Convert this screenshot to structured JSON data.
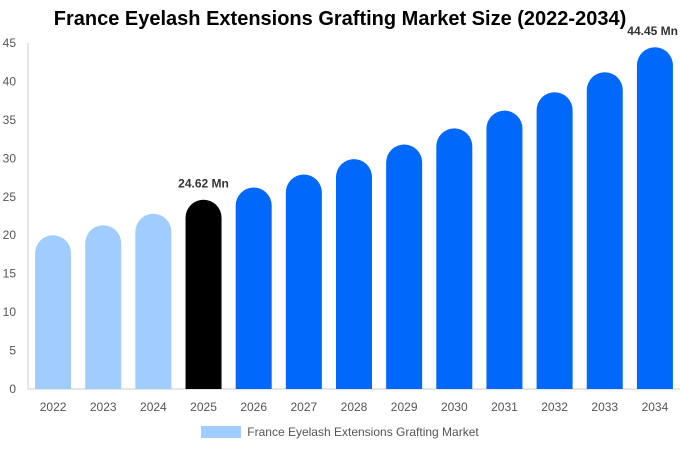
{
  "chart_data": {
    "type": "bar",
    "title": "France Eyelash Extensions Grafting Market Size (2022-2034)",
    "categories": [
      "2022",
      "2023",
      "2024",
      "2025",
      "2026",
      "2027",
      "2028",
      "2029",
      "2030",
      "2031",
      "2032",
      "2033",
      "2034"
    ],
    "series": [
      {
        "name": "France Eyelash Extensions Grafting Market",
        "values": [
          20.0,
          21.3,
          22.8,
          24.62,
          26.2,
          27.9,
          29.9,
          31.8,
          33.9,
          36.2,
          38.6,
          41.2,
          44.45
        ]
      }
    ],
    "xlabel": "",
    "ylabel": "",
    "ylim": [
      0,
      45
    ],
    "yticks": [
      0,
      5,
      10,
      15,
      20,
      25,
      30,
      35,
      40,
      45
    ],
    "grid": false,
    "legend_position": "bottom",
    "annotations": [
      {
        "category": "2025",
        "label": "24.62 Mn"
      },
      {
        "category": "2034",
        "label": "44.45 Mn"
      }
    ],
    "colors": {
      "historical": "#a0cdfd",
      "current": "#000000",
      "forecast": "#0068fb",
      "legend_swatch": "#a0cdfd",
      "axis": "#cccccc"
    },
    "bar_color_groups": [
      "historical",
      "historical",
      "historical",
      "current",
      "forecast",
      "forecast",
      "forecast",
      "forecast",
      "forecast",
      "forecast",
      "forecast",
      "forecast",
      "forecast"
    ]
  }
}
